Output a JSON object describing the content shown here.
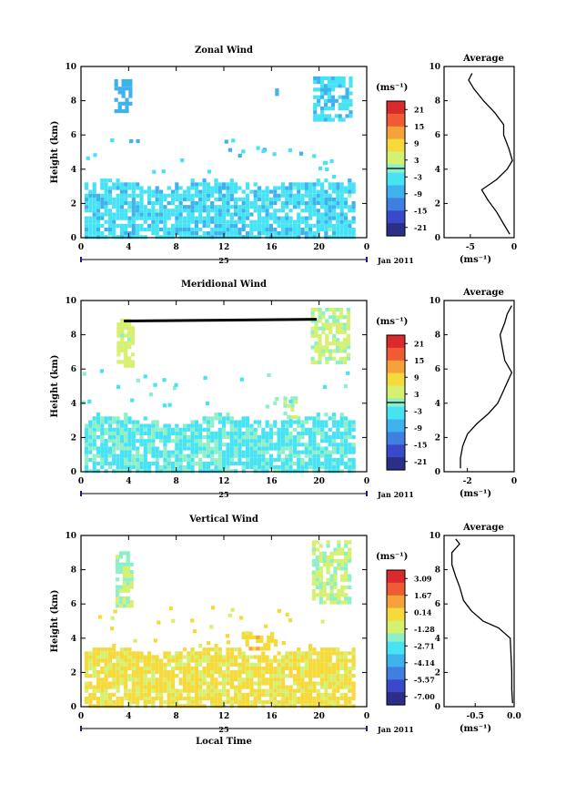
{
  "colors": {
    "colormap": [
      "#2b2f8a",
      "#3949c8",
      "#3f7fe0",
      "#3fb2ee",
      "#47e3f4",
      "#8ff0c8",
      "#d6f070",
      "#f6d93a",
      "#f6a23a",
      "#f05a35",
      "#d92b2b"
    ],
    "contour": "#000000",
    "profile_line": "#000000"
  },
  "chart_data": [
    {
      "type": "heatmap",
      "title": "Zonal Wind",
      "ylabel": "Height (km)",
      "xlabel": "",
      "xlim": [
        0,
        24
      ],
      "ylim": [
        0,
        10
      ],
      "x_ticks": [
        "0",
        "4",
        "8",
        "12",
        "16",
        "20",
        "0"
      ],
      "y_ticks": [
        "0",
        "2",
        "4",
        "6",
        "8",
        "10"
      ],
      "date_label": "25",
      "date_suffix": "Jan 2011",
      "colorbar": {
        "unit": "(ms⁻¹)",
        "range": [
          -24,
          24
        ],
        "ticks": [
          "21",
          "15",
          "9",
          "3",
          "-3",
          "-9",
          "-15",
          "-21"
        ],
        "zero_line": 0
      },
      "field": {
        "low_layer_top_km": 3.3,
        "low_layer_value": -5,
        "patches": [
          {
            "x": [
              2.8,
              4.0
            ],
            "y": [
              7.5,
              9.3
            ],
            "value": -9
          },
          {
            "x": [
              19.5,
              22.8
            ],
            "y": [
              7.0,
              9.6
            ],
            "value": -6
          },
          {
            "x": [
              16.3,
              16.6
            ],
            "y": [
              8.5,
              8.9
            ],
            "value": -10
          }
        ]
      },
      "profile": {
        "title": "Average",
        "xlabel": "(ms⁻¹)",
        "xlim": [
          -8,
          0
        ],
        "x_ticks": [
          "-5",
          "0"
        ],
        "height_km": [
          0.2,
          0.8,
          1.5,
          2.2,
          2.8,
          3.4,
          4.0,
          4.5,
          5.2,
          6.0,
          6.6,
          7.3,
          8.0,
          8.7,
          9.2,
          9.6
        ],
        "values": [
          -0.5,
          -1.2,
          -2.0,
          -3.0,
          -3.7,
          -2.0,
          -0.8,
          -0.2,
          -0.6,
          -1.2,
          -1.2,
          -2.2,
          -3.5,
          -4.6,
          -5.2,
          -4.8
        ]
      }
    },
    {
      "type": "heatmap",
      "title": "Meridional Wind",
      "ylabel": "Height (km)",
      "xlabel": "",
      "xlim": [
        0,
        24
      ],
      "ylim": [
        0,
        10
      ],
      "x_ticks": [
        "0",
        "4",
        "8",
        "12",
        "16",
        "20",
        "0"
      ],
      "y_ticks": [
        "0",
        "2",
        "4",
        "6",
        "8",
        "10"
      ],
      "date_label": "25",
      "date_suffix": "Jan 2011",
      "colorbar": {
        "unit": "(ms⁻¹)",
        "range": [
          -24,
          24
        ],
        "ticks": [
          "21",
          "15",
          "9",
          "3",
          "-3",
          "-9",
          "-15",
          "-21"
        ],
        "zero_line": 0
      },
      "field": {
        "low_layer_top_km": 3.2,
        "low_layer_value": -3,
        "patches": [
          {
            "x": [
              3.0,
              4.2
            ],
            "y": [
              6.3,
              9.0
            ],
            "value": 4
          },
          {
            "x": [
              19.3,
              22.5
            ],
            "y": [
              6.5,
              9.8
            ],
            "value": 3
          },
          {
            "x": [
              17.0,
              18.0
            ],
            "y": [
              3.3,
              4.5
            ],
            "value": 2
          }
        ],
        "line": {
          "x": [
            3.6,
            19.8
          ],
          "y": [
            8.8,
            8.9
          ]
        }
      },
      "profile": {
        "title": "Average",
        "xlabel": "(ms⁻¹)",
        "xlim": [
          -3,
          0
        ],
        "x_ticks": [
          "-2",
          "0"
        ],
        "height_km": [
          0.2,
          0.8,
          1.5,
          2.2,
          2.8,
          3.4,
          4.0,
          4.6,
          5.2,
          5.8,
          6.5,
          7.2,
          8.0,
          8.7,
          9.2,
          9.7
        ],
        "values": [
          -2.3,
          -2.3,
          -2.2,
          -2.0,
          -1.6,
          -1.1,
          -0.7,
          -0.5,
          -0.3,
          -0.1,
          -0.4,
          -0.5,
          -0.6,
          -0.4,
          -0.3,
          -0.1
        ]
      }
    },
    {
      "type": "heatmap",
      "title": "Vertical Wind",
      "ylabel": "Height (km)",
      "xlabel": "Local Time",
      "xlim": [
        0,
        24
      ],
      "ylim": [
        0,
        10
      ],
      "x_ticks": [
        "0",
        "4",
        "8",
        "12",
        "16",
        "20",
        "0"
      ],
      "y_ticks": [
        "0",
        "2",
        "4",
        "6",
        "8",
        "10"
      ],
      "date_label": "25",
      "date_suffix": "Jan 2011",
      "colorbar": {
        "unit": "(ms⁻¹)",
        "range": [
          -8.5,
          4.5
        ],
        "ticks": [
          "3.09",
          "1.67",
          "0.14",
          "-1.28",
          "-2.71",
          "-4.14",
          "-5.57",
          "-7.00"
        ],
        "zero_line": null
      },
      "field": {
        "low_layer_top_km": 3.4,
        "low_layer_value": 0.1,
        "patches": [
          {
            "x": [
              2.9,
              4.3
            ],
            "y": [
              6.0,
              9.2
            ],
            "value": -1.5
          },
          {
            "x": [
              19.4,
              22.6
            ],
            "y": [
              6.2,
              9.9
            ],
            "value": -1.2
          },
          {
            "x": [
              13.5,
              16.5
            ],
            "y": [
              3.5,
              4.5
            ],
            "value": 0.6
          }
        ]
      },
      "profile": {
        "title": "Average",
        "xlabel": "(ms⁻¹)",
        "xlim": [
          -0.9,
          0.0
        ],
        "x_ticks": [
          "-0.5",
          "0.0"
        ],
        "height_km": [
          0.2,
          1.0,
          2.0,
          3.0,
          4.0,
          4.6,
          5.0,
          5.6,
          6.2,
          7.0,
          7.6,
          8.3,
          9.0,
          9.5,
          9.8
        ],
        "values": [
          -0.02,
          -0.03,
          -0.03,
          -0.04,
          -0.05,
          -0.2,
          -0.4,
          -0.55,
          -0.65,
          -0.7,
          -0.75,
          -0.8,
          -0.8,
          -0.7,
          -0.75
        ]
      }
    }
  ]
}
